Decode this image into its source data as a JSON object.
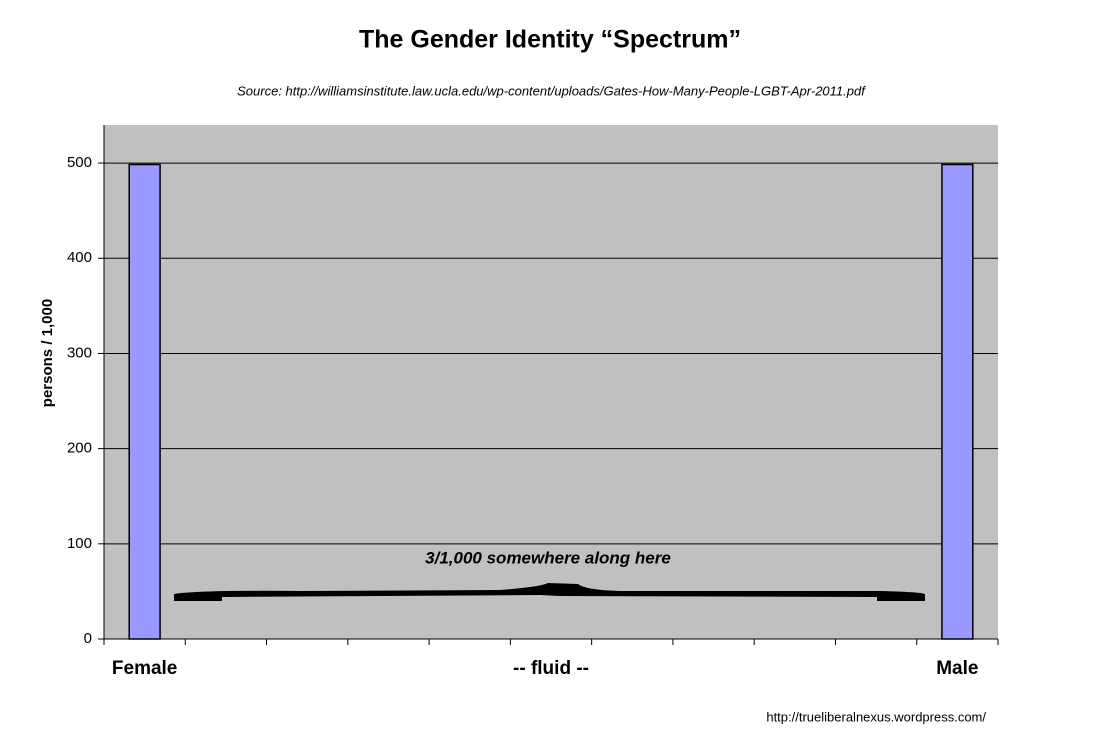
{
  "chart_data": {
    "type": "bar",
    "title": "The Gender Identity “Spectrum”",
    "subtitle": "Source: http://williamsinstitute.law.ucla.edu/wp-content/uploads/Gates-How-Many-People-LGBT-Apr-2011.pdf",
    "y_label": "persons / 1,000",
    "annotation": "3/1,000 somewhere along here",
    "footer": "http://trueliberalnexus.wordpress.com/",
    "categories": [
      "Female",
      null,
      null,
      null,
      null,
      "-- fluid --",
      null,
      null,
      null,
      null,
      "Male"
    ],
    "values": [
      498.5,
      0,
      0,
      0,
      0,
      0,
      0,
      0,
      0,
      0,
      498.5
    ],
    "color": "#9999ff",
    "ylim": [
      0,
      540
    ],
    "yticks": [
      0,
      100,
      200,
      300,
      400,
      500
    ],
    "grid": true
  }
}
